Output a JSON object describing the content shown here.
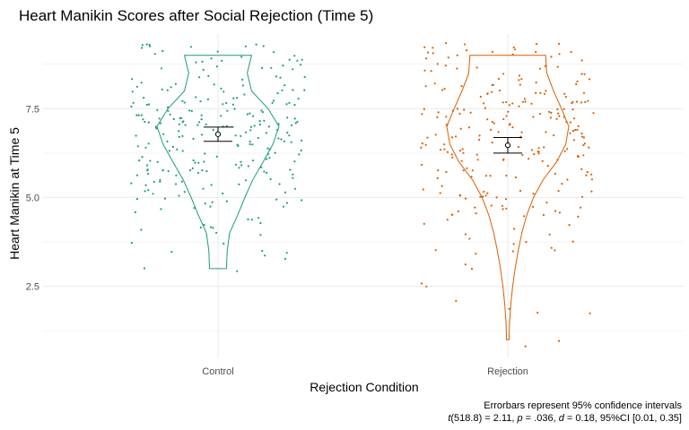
{
  "chart_data": {
    "type": "violin-jitter",
    "title": "Heart Manikin Scores after Social Rejection (Time 5)",
    "xlabel": "Rejection Condition",
    "ylabel": "Heart Manikin at Time 5",
    "categories": [
      "Control",
      "Rejection"
    ],
    "y_ticks": [
      "2.5",
      "5.0",
      "7.5"
    ],
    "ylim": [
      0.5,
      9.6
    ],
    "grid": true,
    "colors": {
      "Control": "#1b9e77",
      "Rejection": "#d95f02",
      "errorbar": "#000000",
      "grid": "#ebebeb"
    },
    "series": [
      {
        "group": "Control",
        "mean": 6.78,
        "ci": [
          6.58,
          6.98
        ],
        "violin_range": [
          3.0,
          9.0
        ],
        "violin_profile": [
          [
            3.0,
            0.14
          ],
          [
            3.5,
            0.15
          ],
          [
            4.0,
            0.19
          ],
          [
            4.5,
            0.32
          ],
          [
            5.0,
            0.44
          ],
          [
            5.5,
            0.57
          ],
          [
            6.0,
            0.74
          ],
          [
            6.5,
            0.9
          ],
          [
            7.0,
            1.0
          ],
          [
            7.5,
            0.82
          ],
          [
            8.0,
            0.55
          ],
          [
            8.5,
            0.48
          ],
          [
            9.0,
            0.55
          ]
        ]
      },
      {
        "group": "Rejection",
        "mean": 6.47,
        "ci": [
          6.25,
          6.69
        ],
        "violin_range": [
          1.0,
          9.0
        ],
        "violin_profile": [
          [
            1.0,
            0.02
          ],
          [
            1.5,
            0.03
          ],
          [
            2.0,
            0.05
          ],
          [
            2.5,
            0.08
          ],
          [
            3.0,
            0.12
          ],
          [
            3.5,
            0.17
          ],
          [
            4.0,
            0.23
          ],
          [
            4.5,
            0.31
          ],
          [
            5.0,
            0.42
          ],
          [
            5.5,
            0.58
          ],
          [
            6.0,
            0.8
          ],
          [
            6.5,
            0.95
          ],
          [
            7.0,
            1.0
          ],
          [
            7.5,
            0.88
          ],
          [
            8.0,
            0.75
          ],
          [
            8.5,
            0.64
          ],
          [
            9.0,
            0.62
          ]
        ]
      }
    ]
  },
  "caption": {
    "line1": "Errorbars represent 95% confidence intervals",
    "line2": {
      "t_sym": "t",
      "t_val": "(518.8) = 2.11, ",
      "p_sym": "p",
      "p_val": " = .036, ",
      "d_sym": "d",
      "d_val": " = 0.18, 95%CI [0.01, 0.35]"
    }
  }
}
